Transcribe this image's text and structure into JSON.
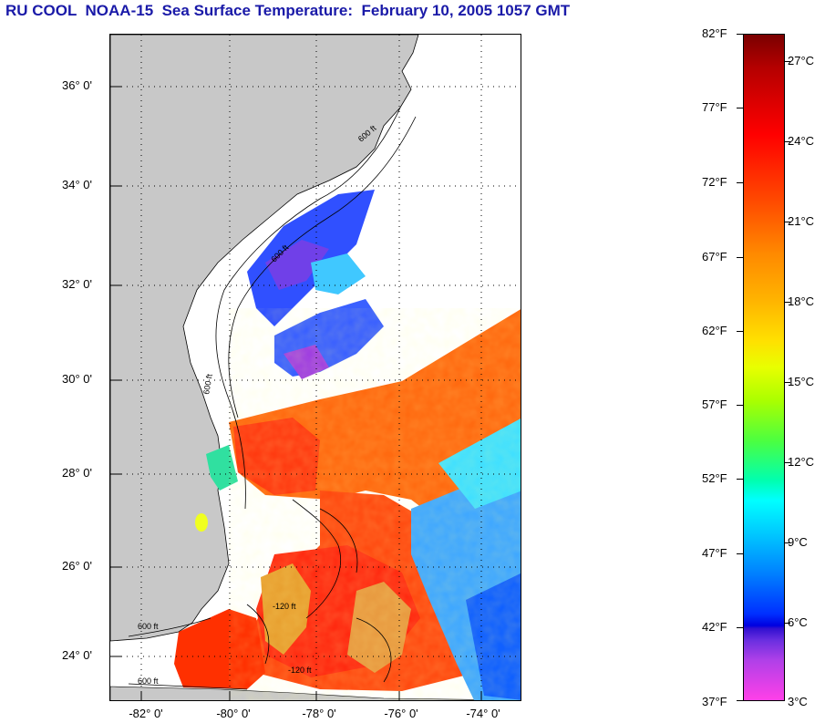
{
  "title": "RU COOL  NOAA-15  Sea Surface Temperature:  February 10, 2005 1057 GMT",
  "map": {
    "lat_labels": [
      "36° 0'",
      "34° 0'",
      "32° 0'",
      "30° 0'",
      "28° 0'",
      "26° 0'",
      "24° 0'"
    ],
    "lon_labels": [
      "-82° 0'",
      "-80° 0'",
      "-78° 0'",
      "-76° 0'",
      "-74° 0'"
    ],
    "contour_labels": [
      "600 ft",
      "600 ft",
      "600 ft",
      "-120 ft",
      "-120 ft",
      "600 ft",
      "600 ft"
    ],
    "colors": {
      "land": "#c8c8c8",
      "nodata": "#ffffff",
      "grid": "#000000"
    }
  },
  "colorbar": {
    "fahrenheit": [
      "82°F",
      "77°F",
      "72°F",
      "67°F",
      "62°F",
      "57°F",
      "52°F",
      "47°F",
      "42°F",
      "37°F"
    ],
    "celsius": [
      "27°C",
      "24°C",
      "21°C",
      "18°C",
      "15°C",
      "12°C",
      "9°C",
      "6°C",
      "3°C"
    ]
  }
}
